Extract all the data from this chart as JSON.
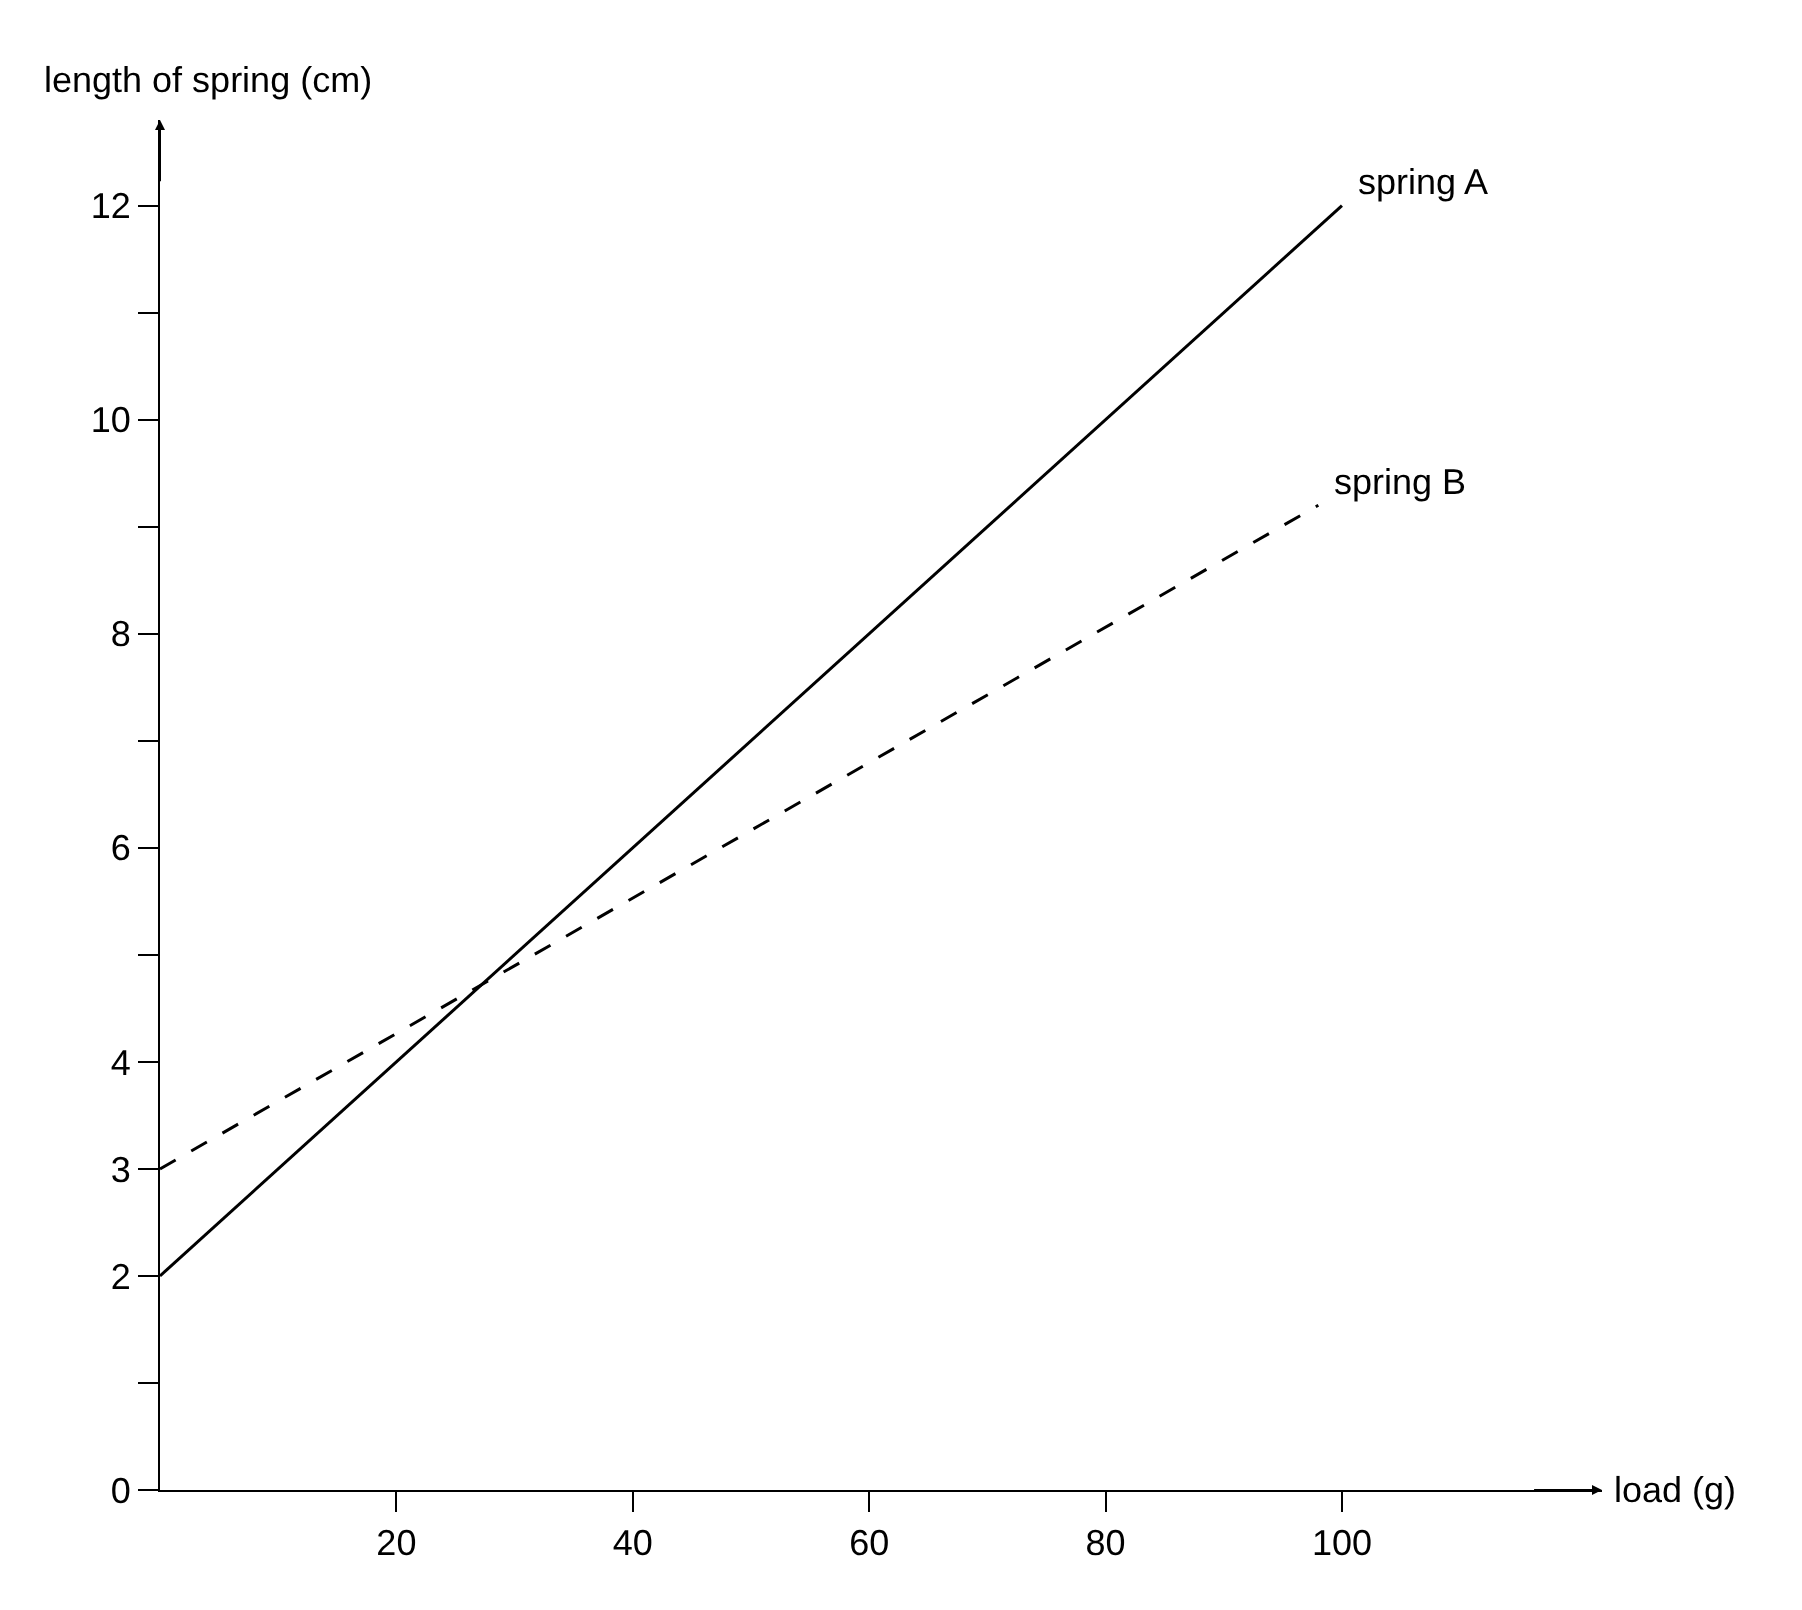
{
  "chart_data": {
    "type": "line",
    "xlabel": "load (g)",
    "ylabel": "length of spring (cm)",
    "xlim": [
      0,
      122
    ],
    "xticks": [
      20,
      40,
      60,
      80,
      100
    ],
    "ylim": [
      0,
      12.8
    ],
    "yticks": [
      0,
      {
        "value": 1,
        "label": null
      },
      2,
      3,
      4,
      {
        "value": 5,
        "label": null
      },
      6,
      {
        "value": 7,
        "label": null
      },
      8,
      {
        "value": 9,
        "label": null
      },
      10,
      {
        "value": 11,
        "label": null
      },
      12
    ],
    "legend": false,
    "marker": "none",
    "series": [
      {
        "name": "spring A",
        "color": "#000000",
        "x": [
          0,
          100
        ],
        "values": [
          2,
          12
        ],
        "line_style": "solid"
      },
      {
        "name": "spring B",
        "color": "#000000",
        "x": [
          0,
          98
        ],
        "values": [
          3,
          9.2
        ],
        "line_style": "dashed"
      }
    ]
  }
}
